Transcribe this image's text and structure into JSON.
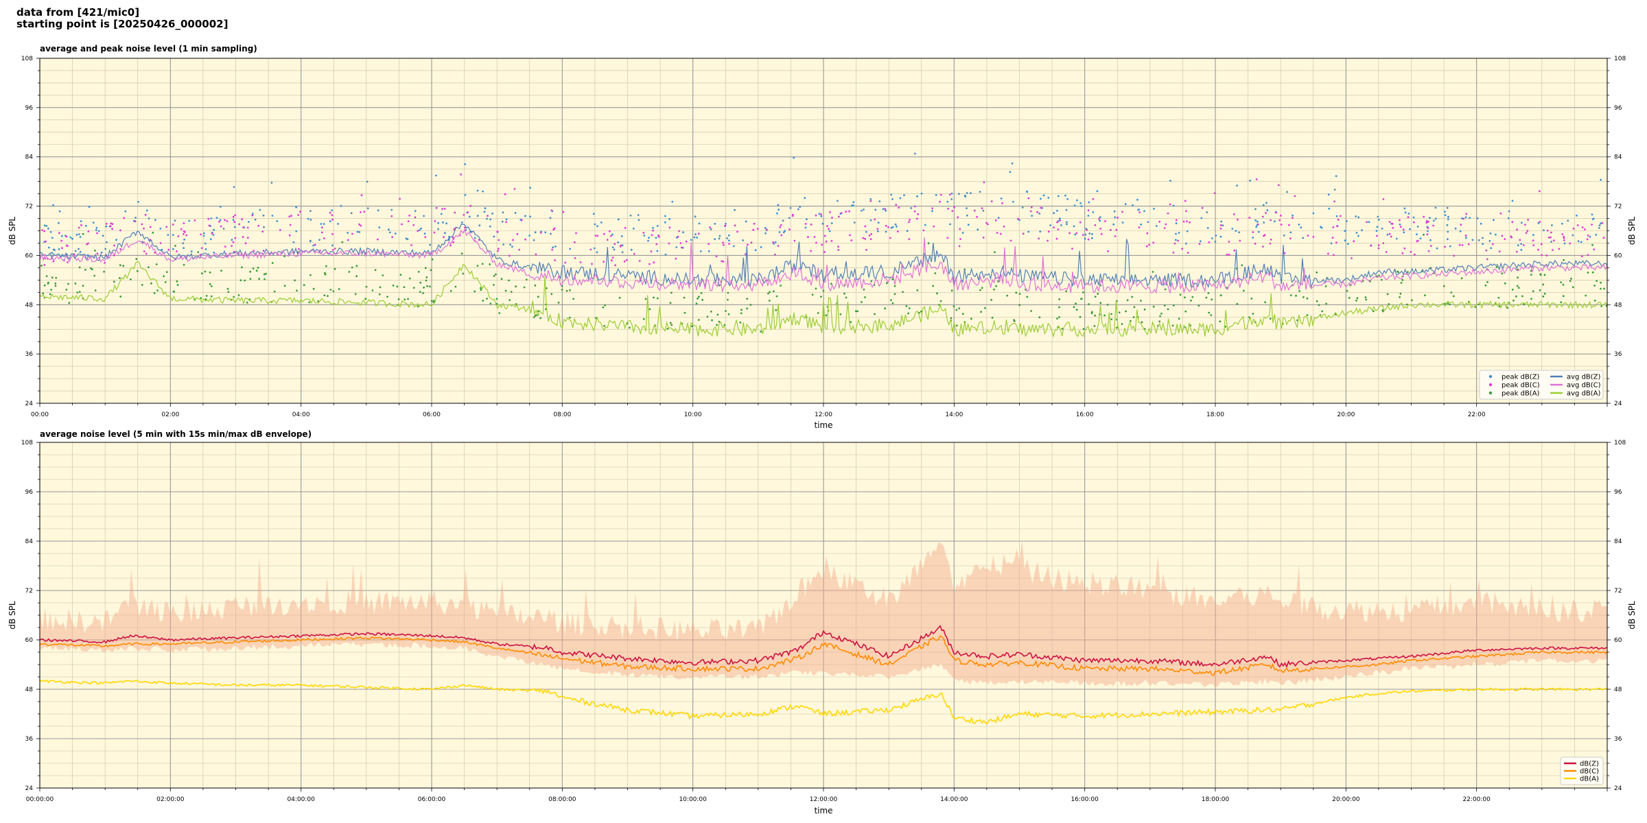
{
  "header": {
    "line1": "data from [421/mic0]",
    "line2": "starting point is [20250426_000002]"
  },
  "colors": {
    "plot_bg": "#fff8dc",
    "grid_major": "#999999",
    "grid_minor": "#c9c0a3",
    "peak_z": "#3e8fd0",
    "peak_c": "#e03ad6",
    "peak_a": "#3a9a3a",
    "avg_z": "#4f7fb8",
    "avg_c": "#e070d8",
    "avg_a": "#9acd32",
    "db_z": "#cc1040",
    "db_c": "#ff8c00",
    "db_a": "#ffd700",
    "envelope": "#f4a88a"
  },
  "chart_data": [
    {
      "type": "line",
      "title": "average and peak noise level (1 min sampling)",
      "xlabel": "time",
      "ylabel": "dB SPL",
      "ylabel_right": "dB SPL",
      "xlim_hours": [
        0,
        24
      ],
      "ylim": [
        24,
        108
      ],
      "y_ticks": [
        24,
        36,
        48,
        60,
        72,
        84,
        96,
        108
      ],
      "x_ticks_hours": [
        0,
        2,
        4,
        6,
        8,
        10,
        12,
        14,
        16,
        18,
        20,
        22
      ],
      "x_tick_labels": [
        "00:00",
        "02:00",
        "04:00",
        "06:00",
        "08:00",
        "10:00",
        "12:00",
        "14:00",
        "16:00",
        "18:00",
        "20:00",
        "22:00"
      ],
      "grid": true,
      "legend_position": "bottom-right",
      "legend": [
        {
          "label": "peak dB(Z)",
          "kind": "dot",
          "color_key": "peak_z"
        },
        {
          "label": "peak dB(C)",
          "kind": "dot",
          "color_key": "peak_c"
        },
        {
          "label": "peak dB(A)",
          "kind": "dot",
          "color_key": "peak_a"
        },
        {
          "label": "avg dB(Z)",
          "kind": "line",
          "color_key": "avg_z"
        },
        {
          "label": "avg dB(C)",
          "kind": "line",
          "color_key": "avg_c"
        },
        {
          "label": "avg dB(A)",
          "kind": "line",
          "color_key": "avg_a"
        }
      ],
      "x_hours": [
        0,
        1,
        1.5,
        2,
        3,
        4,
        5,
        6,
        6.5,
        7,
        7.5,
        8,
        9,
        10,
        11,
        11.6,
        12,
        13,
        13.8,
        14,
        14.7,
        15,
        16,
        17,
        18,
        18.8,
        19,
        20,
        20.5,
        21,
        22,
        23,
        23.8
      ],
      "series": [
        {
          "name": "avg dB(Z)",
          "color_key": "avg_z",
          "values": [
            60,
            59.5,
            66,
            59.5,
            60.5,
            61,
            61,
            60.5,
            68,
            59,
            57,
            56,
            55,
            54,
            54,
            58,
            55,
            56,
            60,
            55,
            56,
            55,
            54,
            54,
            54,
            57,
            54,
            54,
            56,
            56,
            57,
            58,
            58
          ]
        },
        {
          "name": "avg dB(C)",
          "color_key": "avg_c",
          "values": [
            59.5,
            59,
            64,
            59,
            60,
            60.5,
            60.5,
            60,
            66,
            58,
            55.5,
            54.5,
            53.5,
            53,
            53,
            56,
            53,
            54,
            58,
            53,
            54,
            53,
            52.5,
            52.5,
            52.5,
            55,
            52.5,
            53,
            54.5,
            55,
            56,
            57,
            57
          ]
        },
        {
          "name": "avg dB(A)",
          "color_key": "avg_a",
          "values": [
            50,
            49.5,
            58,
            49.5,
            49,
            49,
            48.5,
            48,
            58,
            48,
            47,
            44,
            42.5,
            42,
            42,
            45,
            42.5,
            43,
            47,
            42,
            42.5,
            42,
            42,
            42,
            42,
            45,
            43,
            46,
            47,
            48,
            48,
            48,
            48
          ]
        },
        {
          "name": "peak dB(Z)",
          "color_key": "peak_z",
          "kind": "scatter",
          "values": [
            63,
            64,
            68,
            64,
            66,
            67,
            67,
            67,
            70,
            66,
            66,
            66,
            65,
            65,
            66,
            70,
            68,
            70,
            72,
            70,
            72,
            71,
            69,
            69,
            67,
            70,
            68,
            67,
            67,
            67,
            66,
            66,
            66
          ]
        },
        {
          "name": "peak dB(C)",
          "color_key": "peak_c",
          "kind": "scatter",
          "values": [
            62,
            63,
            66,
            63,
            65,
            65,
            66,
            66,
            68,
            64,
            64,
            63,
            62,
            62,
            63,
            67,
            65,
            67,
            70,
            67,
            69,
            68,
            66,
            66,
            64,
            67,
            65,
            64,
            64,
            65,
            64,
            64,
            64
          ]
        },
        {
          "name": "peak dB(A)",
          "color_key": "peak_a",
          "kind": "scatter",
          "values": [
            53,
            53,
            56,
            53,
            53,
            53,
            53,
            52,
            56,
            51,
            50,
            48,
            47,
            46,
            46,
            50,
            48,
            49,
            52,
            47,
            48,
            47,
            47,
            47,
            47,
            49,
            48,
            50,
            51,
            52,
            52,
            52,
            52
          ]
        }
      ]
    },
    {
      "type": "line",
      "title": "average noise level (5 min with 15s min/max dB envelope)",
      "xlabel": "time",
      "ylabel": "dB SPL",
      "ylabel_right": "dB SPL",
      "xlim_hours": [
        0,
        24
      ],
      "ylim": [
        24,
        108
      ],
      "y_ticks": [
        24,
        36,
        48,
        60,
        72,
        84,
        96,
        108
      ],
      "x_ticks_hours": [
        0,
        2,
        4,
        6,
        8,
        10,
        12,
        14,
        16,
        18,
        20,
        22
      ],
      "x_tick_labels": [
        "00:00:00",
        "02:00:00",
        "04:00:00",
        "06:00:00",
        "08:00:00",
        "10:00:00",
        "12:00:00",
        "14:00:00",
        "16:00:00",
        "18:00:00",
        "20:00:00",
        "22:00:00"
      ],
      "grid": true,
      "legend_position": "bottom-right",
      "legend": [
        {
          "label": "dB(Z)",
          "kind": "line",
          "color_key": "db_z"
        },
        {
          "label": "dB(C)",
          "kind": "line",
          "color_key": "db_c"
        },
        {
          "label": "dB(A)",
          "kind": "line",
          "color_key": "db_a"
        }
      ],
      "x_hours": [
        0,
        1,
        1.4,
        2,
        3,
        4,
        5,
        6,
        6.5,
        7,
        7.8,
        8,
        9,
        10,
        11,
        11.6,
        12,
        13,
        13.8,
        14,
        14.5,
        15,
        16,
        17,
        18,
        18.8,
        19,
        20,
        20.5,
        21,
        22,
        23,
        23.8
      ],
      "series": [
        {
          "name": "dB(Z)",
          "color_key": "db_z",
          "values": [
            60,
            59.5,
            61,
            60,
            60.5,
            61,
            61.5,
            61,
            60.5,
            59,
            58,
            57,
            55.5,
            54.5,
            55,
            57.5,
            62,
            56,
            63,
            57,
            56,
            56.5,
            55,
            55,
            54,
            56,
            54,
            55,
            55.5,
            56,
            57.5,
            58,
            58
          ]
        },
        {
          "name": "dB(C)",
          "color_key": "db_c",
          "values": [
            59,
            58.5,
            59,
            59,
            59.5,
            60,
            60.5,
            60,
            59.5,
            58,
            56,
            55.5,
            53.5,
            53,
            53,
            55.5,
            59,
            54,
            61,
            55,
            54,
            54.5,
            53,
            53,
            52,
            54,
            52.5,
            53.5,
            54,
            55,
            56,
            57,
            57
          ]
        },
        {
          "name": "dB(A)",
          "color_key": "db_a",
          "values": [
            50,
            49.5,
            50,
            49.5,
            49,
            49,
            48.5,
            48,
            49,
            48,
            47.5,
            46,
            43,
            41.5,
            42,
            44,
            42,
            43,
            47,
            41,
            40,
            42,
            41.5,
            42,
            42.5,
            43,
            43,
            46,
            47,
            47.5,
            48,
            48,
            48
          ]
        },
        {
          "name": "envelope max",
          "color_key": "envelope",
          "values": [
            66,
            65,
            70,
            67,
            69,
            70,
            70,
            70,
            69,
            67,
            66,
            65,
            64,
            63,
            63,
            72,
            78,
            70,
            84,
            72,
            80,
            78,
            74,
            73,
            70,
            72,
            70,
            68,
            68,
            68,
            70,
            68,
            68
          ]
        },
        {
          "name": "envelope min",
          "color_key": "envelope",
          "values": [
            58,
            57.5,
            58,
            57.5,
            58,
            58.5,
            59,
            58.5,
            58,
            56,
            54,
            53,
            51.5,
            51,
            51,
            52,
            52,
            51,
            54,
            50,
            49.5,
            50,
            49.5,
            49.5,
            49,
            50,
            49.5,
            51,
            52,
            53,
            54,
            55,
            55
          ]
        }
      ]
    }
  ]
}
